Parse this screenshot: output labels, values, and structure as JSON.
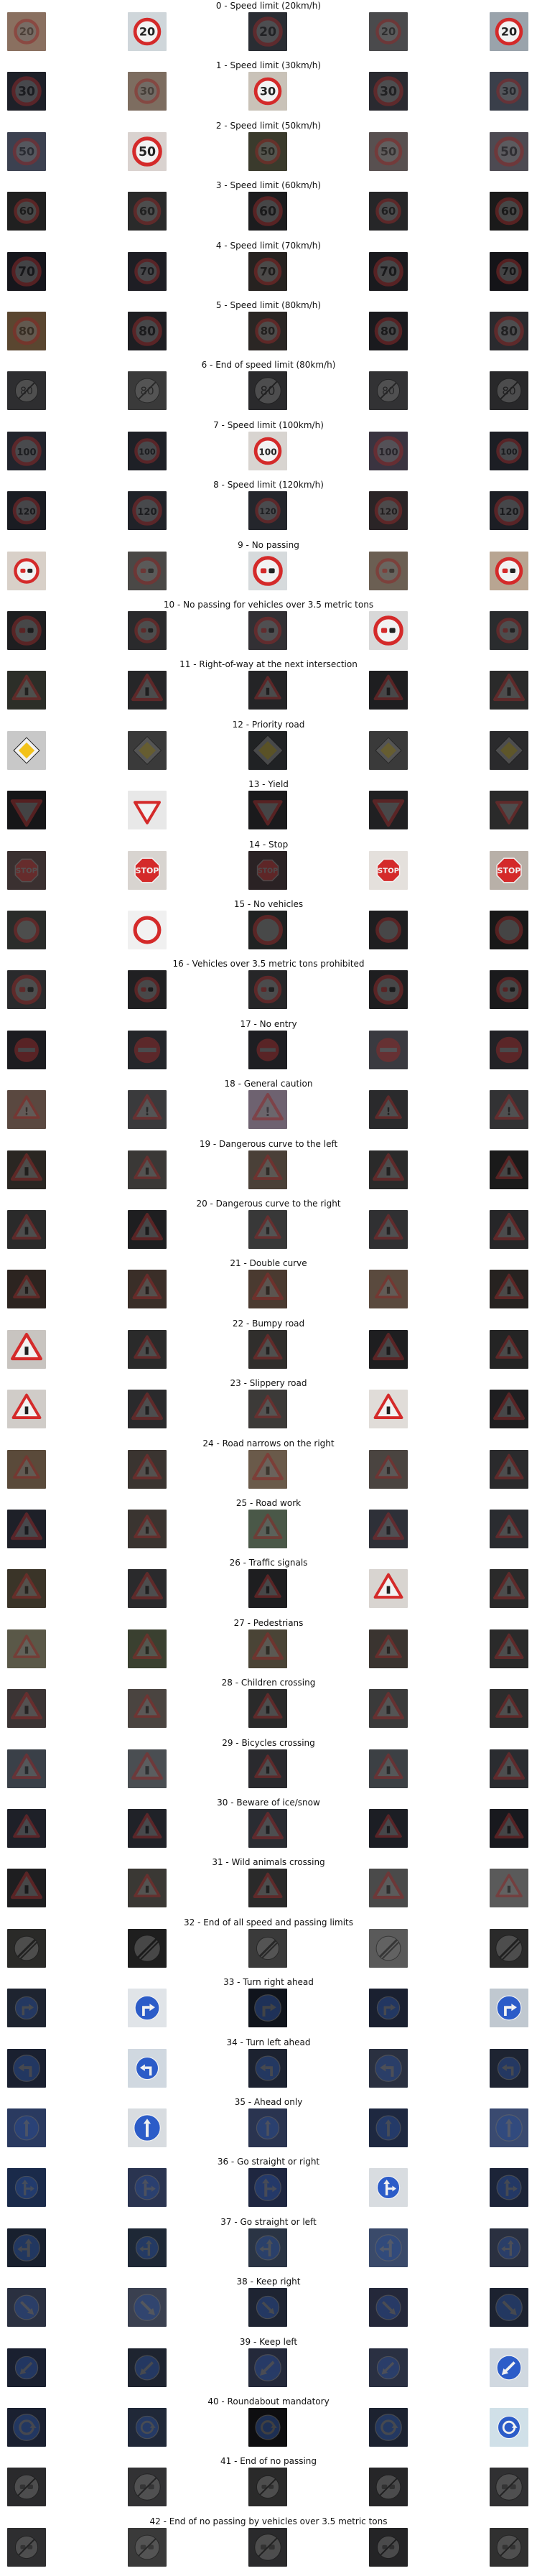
{
  "classes": [
    {
      "title": "0 - Speed limit (20km/h)",
      "kind": "speed",
      "num": "20",
      "bgs": [
        "#8a7060",
        "#cfd6da",
        "#2a2d33",
        "#4a4a4c",
        "#9aa3ab"
      ]
    },
    {
      "title": "1 - Speed limit (30km/h)",
      "kind": "speed",
      "num": "30",
      "bgs": [
        "#1e2028",
        "#7d6d60",
        "#c9c2b8",
        "#2a2a30",
        "#3a3f4a"
      ]
    },
    {
      "title": "2 - Speed limit (50km/h)",
      "kind": "speed",
      "num": "50",
      "bgs": [
        "#3c4150",
        "#d9d2cf",
        "#3a3a2c",
        "#585050",
        "#4d4a52"
      ]
    },
    {
      "title": "3 - Speed limit (60km/h)",
      "kind": "speed",
      "num": "60",
      "bgs": [
        "#202020",
        "#2a2a2a",
        "#1c1c1e",
        "#262628",
        "#1a1a1a"
      ]
    },
    {
      "title": "4 - Speed limit (70km/h)",
      "kind": "speed",
      "num": "70",
      "bgs": [
        "#16161c",
        "#1e1e24",
        "#262220",
        "#1a1a1e",
        "#141418"
      ]
    },
    {
      "title": "5 - Speed limit (80km/h)",
      "kind": "speed",
      "num": "80",
      "bgs": [
        "#5a4630",
        "#1e1e22",
        "#2a2624",
        "#1a1a1e",
        "#2a2a2e"
      ]
    },
    {
      "title": "6 - End of speed limit (80km/h)",
      "kind": "endlimit",
      "num": "80",
      "bgs": [
        "#2e2e30",
        "#3a3a3a",
        "#2a2a2c",
        "#323234",
        "#28282a"
      ]
    },
    {
      "title": "7 - Speed limit (100km/h)",
      "kind": "speed",
      "num": "100",
      "bgs": [
        "#22242c",
        "#1e2026",
        "#d8d4d0",
        "#3a3440",
        "#1c1e24"
      ]
    },
    {
      "title": "8 - Speed limit (120km/h)",
      "kind": "speed",
      "num": "120",
      "bgs": [
        "#1a1c22",
        "#202228",
        "#24262c",
        "#2a2426",
        "#1c1e24"
      ]
    },
    {
      "title": "9 - No passing",
      "kind": "nopass",
      "num": "",
      "bgs": [
        "#d8d0c8",
        "#4a4846",
        "#d6dadc",
        "#6b5f53",
        "#b8a592"
      ]
    },
    {
      "title": "10 - No passing for vehicles over 3.5 metric tons",
      "kind": "nopass",
      "num": "",
      "bgs": [
        "#1e1e20",
        "#2a2a2c",
        "#323034",
        "#d8d8d8",
        "#2a2c2e"
      ]
    },
    {
      "title": "11 - Right-of-way at the next intersection",
      "kind": "tri",
      "num": "",
      "bgs": [
        "#2c2e28",
        "#262628",
        "#242426",
        "#1e1e20",
        "#2a2a2a"
      ]
    },
    {
      "title": "12 - Priority road",
      "kind": "priority",
      "num": "",
      "bgs": [
        "#c8c8c8",
        "#3a3a3a",
        "#202224",
        "#3a3a3a",
        "#2a2a2c"
      ]
    },
    {
      "title": "13 - Yield",
      "kind": "yield",
      "num": "",
      "bgs": [
        "#161618",
        "#e8e8e8",
        "#1a1a1c",
        "#202022",
        "#2a2a2a"
      ]
    },
    {
      "title": "14 - Stop",
      "kind": "stop",
      "num": "",
      "bgs": [
        "#3a3030",
        "#d8d4d0",
        "#2a2224",
        "#e4e0dc",
        "#b8b0a8"
      ]
    },
    {
      "title": "15 - No vehicles",
      "kind": "novehicle",
      "num": "",
      "bgs": [
        "#2a2c2a",
        "#f0f0f0",
        "#202222",
        "#1e1e20",
        "#181818"
      ]
    },
    {
      "title": "16 - Vehicles over 3.5 metric tons prohibited",
      "kind": "nopass",
      "num": "",
      "bgs": [
        "#2a2a2c",
        "#202022",
        "#262628",
        "#1e1e20",
        "#1a1a1c"
      ]
    },
    {
      "title": "17 - No entry",
      "kind": "noentry",
      "num": "",
      "bgs": [
        "#1c1c20",
        "#24262a",
        "#1e1e22",
        "#3a3a40",
        "#222226"
      ]
    },
    {
      "title": "18 - General caution",
      "kind": "tri",
      "num": "!",
      "bgs": [
        "#5a4840",
        "#3a3a3c",
        "#6e6270",
        "#2a2a2c",
        "#323234"
      ]
    },
    {
      "title": "19 - Dangerous curve to the left",
      "kind": "tri",
      "num": "",
      "bgs": [
        "#2a2622",
        "#3a3836",
        "#4a4038",
        "#2a2a2a",
        "#1a1a1a"
      ]
    },
    {
      "title": "20 - Dangerous curve to the right",
      "kind": "tri",
      "num": "",
      "bgs": [
        "#2a2a2a",
        "#1e1e20",
        "#383838",
        "#303032",
        "#262628"
      ]
    },
    {
      "title": "21 - Double curve",
      "kind": "tri",
      "num": "",
      "bgs": [
        "#2c2420",
        "#3a2e28",
        "#4a3a30",
        "#5a4a3e",
        "#262220"
      ]
    },
    {
      "title": "22 - Bumpy road",
      "kind": "tri",
      "num": "",
      "bgs": [
        "#c8c4c0",
        "#2a2a2a",
        "#302e2c",
        "#1e1e20",
        "#242424"
      ]
    },
    {
      "title": "23 - Slippery road",
      "kind": "tri",
      "num": "",
      "bgs": [
        "#d0ccc8",
        "#2a2a2c",
        "#3c3a38",
        "#e0dcd8",
        "#1e1e20"
      ]
    },
    {
      "title": "24 - Road narrows on the right",
      "kind": "tri",
      "num": "",
      "bgs": [
        "#5a4a3a",
        "#3a3430",
        "#6a5a4a",
        "#4a4440",
        "#2a2a2c"
      ]
    },
    {
      "title": "25 - Road work",
      "kind": "tri",
      "num": "",
      "bgs": [
        "#1e2028",
        "#3a3430",
        "#4a5848",
        "#2e3038",
        "#2a2c30"
      ]
    },
    {
      "title": "26 - Traffic signals",
      "kind": "tri",
      "num": "",
      "bgs": [
        "#3a3428",
        "#2a2a2c",
        "#1e1e20",
        "#d8d4d0",
        "#2a2a2a"
      ]
    },
    {
      "title": "27 - Pedestrians",
      "kind": "tri",
      "num": "",
      "bgs": [
        "#5a5848",
        "#3a4030",
        "#4a4436",
        "#3a3430",
        "#2a2a2a"
      ]
    },
    {
      "title": "28 - Children crossing",
      "kind": "tri",
      "num": "",
      "bgs": [
        "#3a3434",
        "#4a4440",
        "#2a2a2a",
        "#3a3a3a",
        "#2c2c2c"
      ]
    },
    {
      "title": "29 - Bicycles crossing",
      "kind": "tri",
      "num": "",
      "bgs": [
        "#3a4048",
        "#4a4e52",
        "#2a2a2e",
        "#3c4044",
        "#2a2c30"
      ]
    },
    {
      "title": "30 - Beware of ice/snow",
      "kind": "tri",
      "num": "",
      "bgs": [
        "#1e2028",
        "#202228",
        "#2a2c32",
        "#1c1e24",
        "#18191e"
      ]
    },
    {
      "title": "31 - Wild animals crossing",
      "kind": "tri",
      "num": "",
      "bgs": [
        "#1e1e20",
        "#3a3834",
        "#2a2a2a",
        "#4a4a4a",
        "#5a5a5a"
      ]
    },
    {
      "title": "32 - End of all speed and passing limits",
      "kind": "endall",
      "num": "",
      "bgs": [
        "#2a2a28",
        "#1e1e1e",
        "#3a3a3a",
        "#5a5a5a",
        "#2a2a2a"
      ]
    },
    {
      "title": "33 - Turn right ahead",
      "kind": "blue",
      "num": "right",
      "bgs": [
        "#1e2430",
        "#e0e4e8",
        "#10141c",
        "#1a2030",
        "#c0c8d0"
      ]
    },
    {
      "title": "34 - Turn left ahead",
      "kind": "blue",
      "num": "left",
      "bgs": [
        "#1a2030",
        "#d0d8e0",
        "#1c2230",
        "#2a3040",
        "#1e2432"
      ]
    },
    {
      "title": "35 - Ahead only",
      "kind": "blue",
      "num": "up",
      "bgs": [
        "#2a3a60",
        "#d8dce0",
        "#2a3450",
        "#1e2840",
        "#3a4a70"
      ]
    },
    {
      "title": "36 - Go straight or right",
      "kind": "blue",
      "num": "upright",
      "bgs": [
        "#1a2a4a",
        "#2a3450",
        "#1e2640",
        "#d8dce0",
        "#1c2438"
      ]
    },
    {
      "title": "37 - Go straight or left",
      "kind": "blue",
      "num": "upleft",
      "bgs": [
        "#18202e",
        "#1e2836",
        "#2a3444",
        "#3a4a6a",
        "#2a3040"
      ]
    },
    {
      "title": "38 - Keep right",
      "kind": "blue",
      "num": "keepright",
      "bgs": [
        "#2a3040",
        "#3a4050",
        "#1e2432",
        "#24283a",
        "#1c2230"
      ]
    },
    {
      "title": "39 - Keep left",
      "kind": "blue",
      "num": "keepleft",
      "bgs": [
        "#1a2030",
        "#1e2430",
        "#24293a",
        "#2a3042",
        "#d0d8e0"
      ]
    },
    {
      "title": "40 - Roundabout mandatory",
      "kind": "blue",
      "num": "round",
      "bgs": [
        "#1a2030",
        "#202838",
        "#0e0e10",
        "#1c2230",
        "#d0e0e8"
      ]
    },
    {
      "title": "41 - End of no passing",
      "kind": "endpass",
      "num": "",
      "bgs": [
        "#2a2a2c",
        "#323234",
        "#2a2a2a",
        "#262628",
        "#303032"
      ]
    },
    {
      "title": "42 - End of no passing by vehicles over 3.5 metric tons",
      "kind": "endpass",
      "num": "",
      "bgs": [
        "#2e2e30",
        "#3a3a3a",
        "#2a2a2c",
        "#242426",
        "#303030"
      ]
    }
  ]
}
